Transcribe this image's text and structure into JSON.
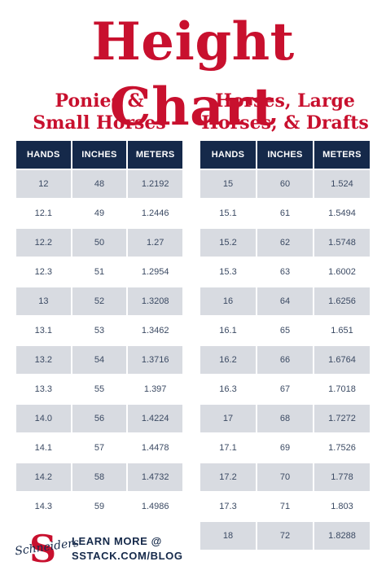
{
  "title": "Height Chart",
  "left_table": {
    "heading_line1": "Ponies &",
    "heading_line2": "Small Horses",
    "columns": [
      "HANDS",
      "INCHES",
      "METERS"
    ],
    "rows": [
      [
        "12",
        "48",
        "1.2192"
      ],
      [
        "12.1",
        "49",
        "1.2446"
      ],
      [
        "12.2",
        "50",
        "1.27"
      ],
      [
        "12.3",
        "51",
        "1.2954"
      ],
      [
        "13",
        "52",
        "1.3208"
      ],
      [
        "13.1",
        "53",
        "1.3462"
      ],
      [
        "13.2",
        "54",
        "1.3716"
      ],
      [
        "13.3",
        "55",
        "1.397"
      ],
      [
        "14.0",
        "56",
        "1.4224"
      ],
      [
        "14.1",
        "57",
        "1.4478"
      ],
      [
        "14.2",
        "58",
        "1.4732"
      ],
      [
        "14.3",
        "59",
        "1.4986"
      ]
    ]
  },
  "right_table": {
    "heading_line1": "Horses, Large",
    "heading_line2": "Horses, & Drafts",
    "columns": [
      "HANDS",
      "INCHES",
      "METERS"
    ],
    "rows": [
      [
        "15",
        "60",
        "1.524"
      ],
      [
        "15.1",
        "61",
        "1.5494"
      ],
      [
        "15.2",
        "62",
        "1.5748"
      ],
      [
        "15.3",
        "63",
        "1.6002"
      ],
      [
        "16",
        "64",
        "1.6256"
      ],
      [
        "16.1",
        "65",
        "1.651"
      ],
      [
        "16.2",
        "66",
        "1.6764"
      ],
      [
        "16.3",
        "67",
        "1.7018"
      ],
      [
        "17",
        "68",
        "1.7272"
      ],
      [
        "17.1",
        "69",
        "1.7526"
      ],
      [
        "17.2",
        "70",
        "1.778"
      ],
      [
        "17.3",
        "71",
        "1.803"
      ],
      [
        "18",
        "72",
        "1.8288"
      ]
    ]
  },
  "footer": {
    "logo_letter": "S",
    "logo_script": "Schneiders",
    "cta_line1": "LEARN MORE @",
    "cta_line2": "SSTACK.COM/BLOG"
  },
  "colors": {
    "title_red": "#c8102e",
    "header_navy": "#15294a",
    "stripe_gray": "#d8dbe1"
  }
}
